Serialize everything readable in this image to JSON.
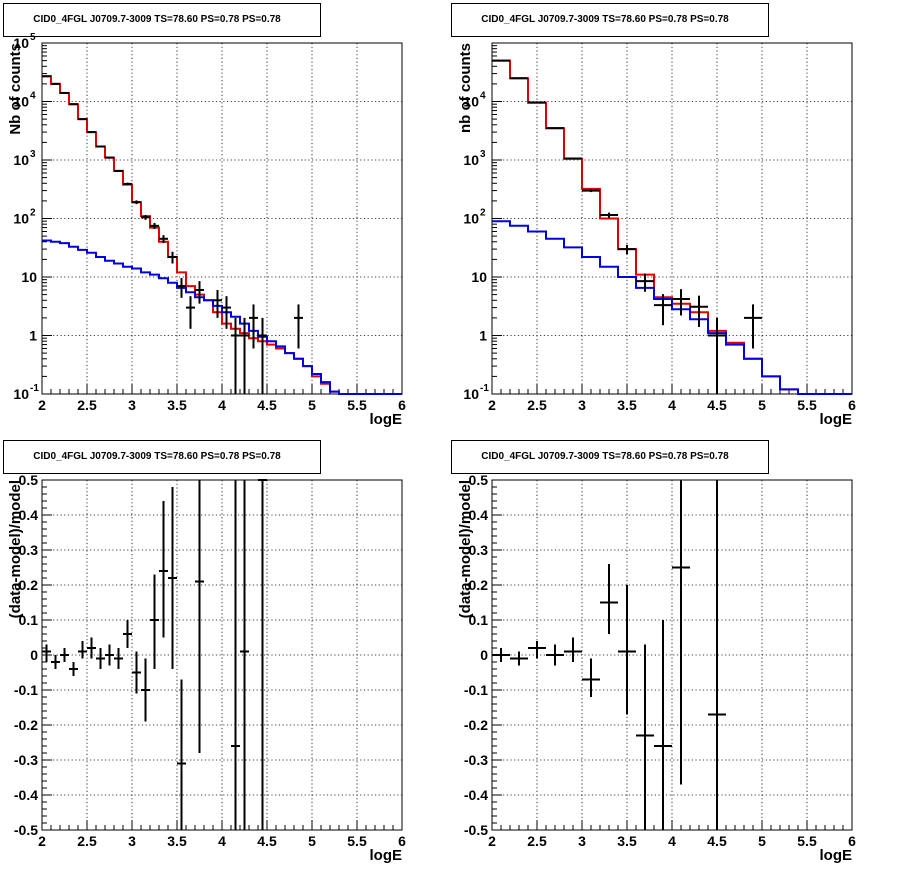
{
  "chart_data": [
    {
      "type": "line",
      "title": "CID0_4FGL J0709.7-3009 TS=78.60 PS=0.78 PS=0.78",
      "xlabel": "logE",
      "ylabel": "Nb of counts",
      "xlim": [
        2,
        6
      ],
      "ylim": [
        0.1,
        100000
      ],
      "yscale": "log",
      "grid": true,
      "x_ticks": [
        "2",
        "2.5",
        "3",
        "3.5",
        "4",
        "4.5",
        "5",
        "5.5",
        "6"
      ],
      "y_ticks": [
        {
          "v": 0.1,
          "base": "10",
          "exp": "-1"
        },
        {
          "v": 1,
          "base": "1",
          "exp": ""
        },
        {
          "v": 10,
          "base": "10",
          "exp": ""
        },
        {
          "v": 100,
          "base": "10",
          "exp": "2"
        },
        {
          "v": 1000,
          "base": "10",
          "exp": "3"
        },
        {
          "v": 10000,
          "base": "10",
          "exp": "4"
        },
        {
          "v": 100000,
          "base": "10",
          "exp": "5"
        }
      ],
      "bin_edges": [
        2.0,
        2.1,
        2.2,
        2.3,
        2.4,
        2.5,
        2.6,
        2.7,
        2.8,
        2.9,
        3.0,
        3.1,
        3.2,
        3.3,
        3.4,
        3.5,
        3.6,
        3.7,
        3.8,
        3.9,
        4.0,
        4.1,
        4.2,
        4.3,
        4.4,
        4.5,
        4.6,
        4.7,
        4.8,
        4.9,
        5.0,
        5.1,
        5.2,
        5.3,
        5.4,
        5.5,
        5.6,
        5.7,
        5.8,
        5.9,
        6.0
      ],
      "series": [
        {
          "color": "#e00000",
          "values": [
            27000,
            20000,
            14000,
            9000,
            5000,
            3000,
            1700,
            1100,
            650,
            380,
            190,
            110,
            70,
            40,
            22,
            12,
            7,
            5,
            4,
            2.5,
            1.6,
            1.3,
            1.1,
            0.9,
            0.8,
            0.7,
            0.6,
            0.5,
            0.4,
            0.3,
            0.2,
            0.15,
            0.11,
            0.1,
            0.1,
            0.1,
            0.1,
            0.1,
            0.1,
            0.1
          ]
        },
        {
          "color": "#0000e0",
          "values": [
            42,
            40,
            38,
            33,
            29,
            26,
            22,
            19,
            17,
            15,
            14,
            12,
            11,
            9.5,
            8,
            6.5,
            5.5,
            4.5,
            4,
            3.2,
            2.5,
            2.1,
            1.6,
            1.2,
            0.95,
            0.8,
            0.65,
            0.5,
            0.4,
            0.3,
            0.22,
            0.16,
            0.11,
            0.1,
            0.1,
            0.1,
            0.1,
            0.1,
            0.1,
            0.1
          ]
        }
      ],
      "points": [
        {
          "x": 2.05,
          "y": 27000,
          "lo": 26800,
          "hi": 27200
        },
        {
          "x": 2.15,
          "y": 20000,
          "lo": 19800,
          "hi": 20200
        },
        {
          "x": 2.25,
          "y": 14000,
          "lo": 13800,
          "hi": 14200
        },
        {
          "x": 2.35,
          "y": 9000,
          "lo": 8900,
          "hi": 9100
        },
        {
          "x": 2.45,
          "y": 5000,
          "lo": 4930,
          "hi": 5070
        },
        {
          "x": 2.55,
          "y": 3000,
          "lo": 2950,
          "hi": 3050
        },
        {
          "x": 2.65,
          "y": 1700,
          "lo": 1660,
          "hi": 1740
        },
        {
          "x": 2.75,
          "y": 1100,
          "lo": 1070,
          "hi": 1130
        },
        {
          "x": 2.85,
          "y": 650,
          "lo": 625,
          "hi": 675
        },
        {
          "x": 2.95,
          "y": 390,
          "lo": 370,
          "hi": 410
        },
        {
          "x": 3.05,
          "y": 190,
          "lo": 176,
          "hi": 204
        },
        {
          "x": 3.15,
          "y": 105,
          "lo": 95,
          "hi": 115
        },
        {
          "x": 3.25,
          "y": 75,
          "lo": 66,
          "hi": 84
        },
        {
          "x": 3.35,
          "y": 45,
          "lo": 38,
          "hi": 52
        },
        {
          "x": 3.45,
          "y": 22,
          "lo": 17,
          "hi": 27
        },
        {
          "x": 3.55,
          "y": 7,
          "lo": 4.4,
          "hi": 9.6
        },
        {
          "x": 3.65,
          "y": 3,
          "lo": 1.3,
          "hi": 4.7
        },
        {
          "x": 3.75,
          "y": 6,
          "lo": 3.5,
          "hi": 8.5
        },
        {
          "x": 3.95,
          "y": 4,
          "lo": 2,
          "hi": 6
        },
        {
          "x": 4.05,
          "y": 3,
          "lo": 1.3,
          "hi": 4.7
        },
        {
          "x": 4.15,
          "y": 1,
          "lo": 0.1,
          "hi": 2
        },
        {
          "x": 4.25,
          "y": 1,
          "lo": 0.1,
          "hi": 2
        },
        {
          "x": 4.35,
          "y": 2,
          "lo": 0.6,
          "hi": 3.4
        },
        {
          "x": 4.45,
          "y": 1,
          "lo": 0.1,
          "hi": 2
        },
        {
          "x": 4.85,
          "y": 2,
          "lo": 0.6,
          "hi": 3.4
        }
      ]
    },
    {
      "type": "line",
      "title": "CID0_4FGL J0709.7-3009 TS=78.60 PS=0.78 PS=0.78",
      "xlabel": "logE",
      "ylabel": "nb of counts",
      "xlim": [
        2,
        6
      ],
      "ylim": [
        0.1,
        100000
      ],
      "yscale": "log",
      "grid": true,
      "x_ticks": [
        "2",
        "2.5",
        "3",
        "3.5",
        "4",
        "4.5",
        "5",
        "5.5",
        "6"
      ],
      "y_ticks": [
        {
          "v": 0.1,
          "base": "10",
          "exp": "-1"
        },
        {
          "v": 1,
          "base": "1",
          "exp": ""
        },
        {
          "v": 10,
          "base": "10",
          "exp": ""
        },
        {
          "v": 100,
          "base": "10",
          "exp": "2"
        },
        {
          "v": 1000,
          "base": "10",
          "exp": "3"
        },
        {
          "v": 10000,
          "base": "10",
          "exp": "4"
        }
      ],
      "bin_edges": [
        2.0,
        2.2,
        2.4,
        2.6,
        2.8,
        3.0,
        3.2,
        3.4,
        3.6,
        3.8,
        4.0,
        4.2,
        4.4,
        4.6,
        4.8,
        5.0,
        5.2,
        5.4,
        5.6,
        5.8,
        6.0
      ],
      "series": [
        {
          "color": "#e00000",
          "values": [
            50000,
            25000,
            9500,
            3500,
            1050,
            320,
            100,
            30,
            11,
            4.5,
            3.5,
            2.5,
            1.2,
            0.75,
            0.4,
            0.2,
            0.12,
            0.1,
            0.1,
            0.1
          ]
        },
        {
          "color": "#0000e0",
          "values": [
            90,
            75,
            60,
            45,
            32,
            22,
            15,
            10,
            6.5,
            4.2,
            2.8,
            1.9,
            1.1,
            0.7,
            0.4,
            0.2,
            0.12,
            0.1,
            0.1,
            0.1
          ]
        }
      ],
      "points": [
        {
          "x": 2.1,
          "y": 50000,
          "lo": 49700,
          "hi": 50300
        },
        {
          "x": 2.3,
          "y": 25000,
          "lo": 24800,
          "hi": 25200
        },
        {
          "x": 2.5,
          "y": 9600,
          "lo": 9450,
          "hi": 9750
        },
        {
          "x": 2.7,
          "y": 3500,
          "lo": 3420,
          "hi": 3580
        },
        {
          "x": 2.9,
          "y": 1060,
          "lo": 1030,
          "hi": 1090
        },
        {
          "x": 3.1,
          "y": 300,
          "lo": 283,
          "hi": 317
        },
        {
          "x": 3.3,
          "y": 115,
          "lo": 104,
          "hi": 126
        },
        {
          "x": 3.5,
          "y": 30,
          "lo": 24.5,
          "hi": 35.5
        },
        {
          "x": 3.7,
          "y": 8.5,
          "lo": 5.6,
          "hi": 11.4
        },
        {
          "x": 3.9,
          "y": 3.3,
          "lo": 1.5,
          "hi": 5.1
        },
        {
          "x": 4.1,
          "y": 4.2,
          "lo": 2.2,
          "hi": 6.2
        },
        {
          "x": 4.3,
          "y": 3.1,
          "lo": 1.4,
          "hi": 4.8
        },
        {
          "x": 4.5,
          "y": 1,
          "lo": 0.1,
          "hi": 2
        },
        {
          "x": 4.9,
          "y": 2,
          "lo": 0.6,
          "hi": 3.4
        }
      ]
    },
    {
      "type": "scatter",
      "title": "CID0_4FGL J0709.7-3009 TS=78.60 PS=0.78 PS=0.78",
      "xlabel": "logE",
      "ylabel": "(data-model)/model",
      "xlim": [
        2,
        6
      ],
      "ylim": [
        -0.5,
        0.5
      ],
      "grid": true,
      "x_ticks": [
        "2",
        "2.5",
        "3",
        "3.5",
        "4",
        "4.5",
        "5",
        "5.5",
        "6"
      ],
      "y_ticks": [
        "-0.5",
        "-0.4",
        "-0.3",
        "-0.2",
        "-0.1",
        "0",
        "0.1",
        "0.2",
        "0.3",
        "0.4",
        "0.5"
      ],
      "xerr": 0.05,
      "points": [
        {
          "x": 2.05,
          "y": 0.01,
          "lo": -0.02,
          "hi": 0.03
        },
        {
          "x": 2.15,
          "y": -0.02,
          "lo": -0.04,
          "hi": 0.0
        },
        {
          "x": 2.25,
          "y": 0.0,
          "lo": -0.02,
          "hi": 0.02
        },
        {
          "x": 2.35,
          "y": -0.04,
          "lo": -0.06,
          "hi": -0.02
        },
        {
          "x": 2.45,
          "y": 0.01,
          "lo": -0.01,
          "hi": 0.04
        },
        {
          "x": 2.55,
          "y": 0.02,
          "lo": -0.01,
          "hi": 0.05
        },
        {
          "x": 2.65,
          "y": -0.01,
          "lo": -0.04,
          "hi": 0.02
        },
        {
          "x": 2.75,
          "y": 0.0,
          "lo": -0.03,
          "hi": 0.03
        },
        {
          "x": 2.85,
          "y": -0.01,
          "lo": -0.04,
          "hi": 0.02
        },
        {
          "x": 2.95,
          "y": 0.06,
          "lo": 0.02,
          "hi": 0.1
        },
        {
          "x": 3.05,
          "y": -0.05,
          "lo": -0.11,
          "hi": 0.01
        },
        {
          "x": 3.15,
          "y": -0.1,
          "lo": -0.19,
          "hi": -0.01
        },
        {
          "x": 3.25,
          "y": 0.1,
          "lo": -0.04,
          "hi": 0.23
        },
        {
          "x": 3.35,
          "y": 0.24,
          "lo": 0.05,
          "hi": 0.44
        },
        {
          "x": 3.45,
          "y": 0.22,
          "lo": -0.04,
          "hi": 0.48
        },
        {
          "x": 3.55,
          "y": -0.31,
          "lo": -0.5,
          "hi": -0.07
        },
        {
          "x": 3.75,
          "y": 0.21,
          "lo": -0.28,
          "hi": 0.5
        },
        {
          "x": 4.15,
          "y": -0.26,
          "lo": -0.5,
          "hi": 0.5
        },
        {
          "x": 4.25,
          "y": 0.01,
          "lo": -0.5,
          "hi": 0.5
        },
        {
          "x": 4.45,
          "y": 0.5,
          "lo": -0.5,
          "hi": 0.5
        }
      ]
    },
    {
      "type": "scatter",
      "title": "CID0_4FGL J0709.7-3009 TS=78.60 PS=0.78 PS=0.78",
      "xlabel": "logE",
      "ylabel": "(data-model)/model",
      "xlim": [
        2,
        6
      ],
      "ylim": [
        -0.5,
        0.5
      ],
      "grid": true,
      "x_ticks": [
        "2",
        "2.5",
        "3",
        "3.5",
        "4",
        "4.5",
        "5",
        "5.5",
        "6"
      ],
      "y_ticks": [
        "-0.5",
        "-0.4",
        "-0.3",
        "-0.2",
        "-0.1",
        "0",
        "0.1",
        "0.2",
        "0.3",
        "0.4",
        "0.5"
      ],
      "xerr": 0.1,
      "points": [
        {
          "x": 2.1,
          "y": 0.0,
          "lo": -0.02,
          "hi": 0.02
        },
        {
          "x": 2.3,
          "y": -0.01,
          "lo": -0.03,
          "hi": 0.01
        },
        {
          "x": 2.5,
          "y": 0.02,
          "lo": -0.01,
          "hi": 0.04
        },
        {
          "x": 2.7,
          "y": 0.0,
          "lo": -0.03,
          "hi": 0.03
        },
        {
          "x": 2.9,
          "y": 0.01,
          "lo": -0.02,
          "hi": 0.05
        },
        {
          "x": 3.1,
          "y": -0.07,
          "lo": -0.12,
          "hi": -0.01
        },
        {
          "x": 3.3,
          "y": 0.15,
          "lo": 0.06,
          "hi": 0.26
        },
        {
          "x": 3.5,
          "y": 0.01,
          "lo": -0.17,
          "hi": 0.2
        },
        {
          "x": 3.7,
          "y": -0.23,
          "lo": -0.5,
          "hi": 0.03
        },
        {
          "x": 3.9,
          "y": -0.26,
          "lo": -0.5,
          "hi": 0.1
        },
        {
          "x": 4.1,
          "y": 0.25,
          "lo": -0.37,
          "hi": 0.5
        },
        {
          "x": 4.5,
          "y": -0.17,
          "lo": -0.5,
          "hi": 0.5
        }
      ]
    }
  ]
}
